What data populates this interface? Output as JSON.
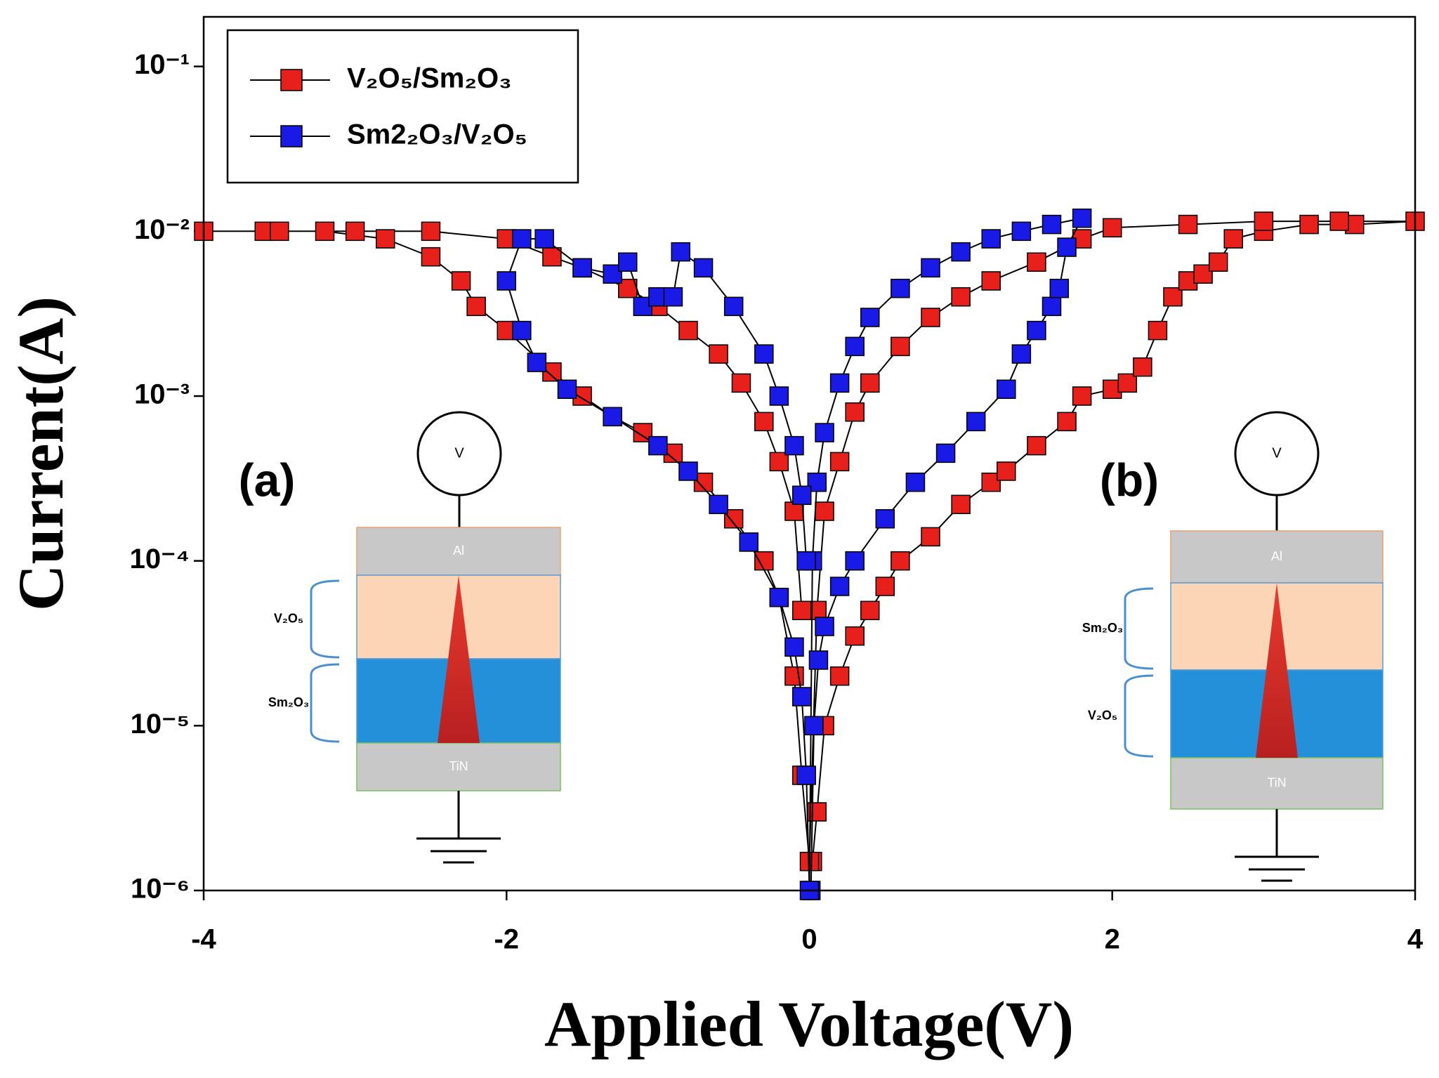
{
  "chart_data": {
    "type": "scatter",
    "x_label": "Applied Voltage(V)",
    "y_label": "Current(A)",
    "xlim": [
      -4,
      4
    ],
    "xticks": [
      -4,
      -2,
      0,
      2,
      4
    ],
    "ylim": [
      1e-06,
      0.2
    ],
    "y_scale": "log",
    "yticks": [
      {
        "value": 1e-06,
        "label": "10⁻⁶"
      },
      {
        "value": 1e-05,
        "label": "10⁻⁵"
      },
      {
        "value": 0.0001,
        "label": "10⁻⁴"
      },
      {
        "value": 0.001,
        "label": "10⁻³"
      },
      {
        "value": 0.01,
        "label": "10⁻²"
      },
      {
        "value": 0.1,
        "label": "10⁻¹"
      }
    ],
    "legend_position": "upper left",
    "line_color": "#000000",
    "series": [
      {
        "name": "V₂O₅/Sm₂O₃",
        "color": "#e8201c",
        "x": [
          0.02,
          0.05,
          0.1,
          0.2,
          0.3,
          0.4,
          0.5,
          0.6,
          0.8,
          1.0,
          1.2,
          1.3,
          1.5,
          1.7,
          1.8,
          2.0,
          2.1,
          2.2,
          2.3,
          2.4,
          2.5,
          2.6,
          2.7,
          2.8,
          3.0,
          3.3,
          3.6,
          4.0,
          3.5,
          3.0,
          2.5,
          2.0,
          1.8,
          1.5,
          1.2,
          1.0,
          0.8,
          0.6,
          0.4,
          0.3,
          0.2,
          0.1,
          0.05,
          0,
          -0.05,
          -0.1,
          -0.2,
          -0.3,
          -0.5,
          -0.7,
          -0.9,
          -1.1,
          -1.3,
          -1.5,
          -1.7,
          -2.0,
          -2.2,
          -2.3,
          -2.5,
          -2.8,
          -3.2,
          -3.6,
          -4.0,
          -3.5,
          -3.0,
          -2.5,
          -2.0,
          -1.7,
          -1.5,
          -1.2,
          -1.0,
          -0.8,
          -0.6,
          -0.45,
          -0.3,
          -0.2,
          -0.1,
          -0.05
        ],
        "values": [
          1.5e-06,
          3e-06,
          1e-05,
          2e-05,
          3.5e-05,
          5e-05,
          7e-05,
          0.0001,
          0.00014,
          0.00022,
          0.0003,
          0.00035,
          0.0005,
          0.0007,
          0.001,
          0.0011,
          0.0012,
          0.0015,
          0.0025,
          0.004,
          0.005,
          0.0055,
          0.0065,
          0.009,
          0.01,
          0.011,
          0.011,
          0.0115,
          0.0115,
          0.0115,
          0.011,
          0.0105,
          0.009,
          0.0065,
          0.005,
          0.004,
          0.003,
          0.002,
          0.0012,
          0.0008,
          0.0004,
          0.0002,
          5e-05,
          1.5e-06,
          5e-06,
          2e-05,
          6e-05,
          0.0001,
          0.00018,
          0.0003,
          0.00045,
          0.0006,
          0.00075,
          0.001,
          0.0014,
          0.0025,
          0.0035,
          0.005,
          0.007,
          0.009,
          0.01,
          0.01,
          0.01,
          0.01,
          0.01,
          0.01,
          0.009,
          0.007,
          0.006,
          0.0045,
          0.0035,
          0.0025,
          0.0018,
          0.0012,
          0.0007,
          0.0004,
          0.0002,
          5e-05
        ]
      },
      {
        "name": "Sm2₂O₃/V₂O₅",
        "color": "#1a1ae6",
        "x": [
          0.01,
          0.03,
          0.06,
          0.1,
          0.2,
          0.3,
          0.5,
          0.7,
          0.9,
          1.1,
          1.3,
          1.4,
          1.5,
          1.6,
          1.65,
          1.7,
          1.8,
          1.6,
          1.4,
          1.2,
          1.0,
          0.8,
          0.6,
          0.4,
          0.3,
          0.2,
          0.1,
          0.05,
          0.02,
          0,
          -0.02,
          -0.05,
          -0.1,
          -0.2,
          -0.4,
          -0.6,
          -0.8,
          -1.0,
          -1.3,
          -1.6,
          -1.8,
          -1.9,
          -2.0,
          -1.9,
          -1.75,
          -1.5,
          -1.3,
          -1.2,
          -1.1,
          -1.0,
          -0.9,
          -0.85,
          -0.7,
          -0.5,
          -0.3,
          -0.2,
          -0.1,
          -0.05,
          -0.02
        ],
        "values": [
          1e-06,
          1e-05,
          2.5e-05,
          4e-05,
          7e-05,
          0.0001,
          0.00018,
          0.0003,
          0.00045,
          0.0007,
          0.0011,
          0.0018,
          0.0025,
          0.0035,
          0.0045,
          0.008,
          0.012,
          0.011,
          0.01,
          0.009,
          0.0075,
          0.006,
          0.0045,
          0.003,
          0.002,
          0.0012,
          0.0006,
          0.0003,
          0.0001,
          1e-06,
          5e-06,
          1.5e-05,
          3e-05,
          6e-05,
          0.00013,
          0.00022,
          0.00035,
          0.0005,
          0.00075,
          0.0011,
          0.0016,
          0.0025,
          0.005,
          0.009,
          0.009,
          0.006,
          0.0055,
          0.0065,
          0.0035,
          0.004,
          0.004,
          0.0075,
          0.006,
          0.0035,
          0.0018,
          0.001,
          0.0005,
          0.00025,
          0.0001
        ]
      }
    ],
    "insets": [
      {
        "label": "(a)",
        "meter": "V",
        "top": "Al",
        "upper": "V₂O₅",
        "lower": "Sm₂O₃",
        "bottom": "TiN"
      },
      {
        "label": "(b)",
        "meter": "V",
        "top": "Al",
        "upper": "Sm₂O₃",
        "lower": "V₂O₅",
        "bottom": "TiN"
      }
    ]
  }
}
